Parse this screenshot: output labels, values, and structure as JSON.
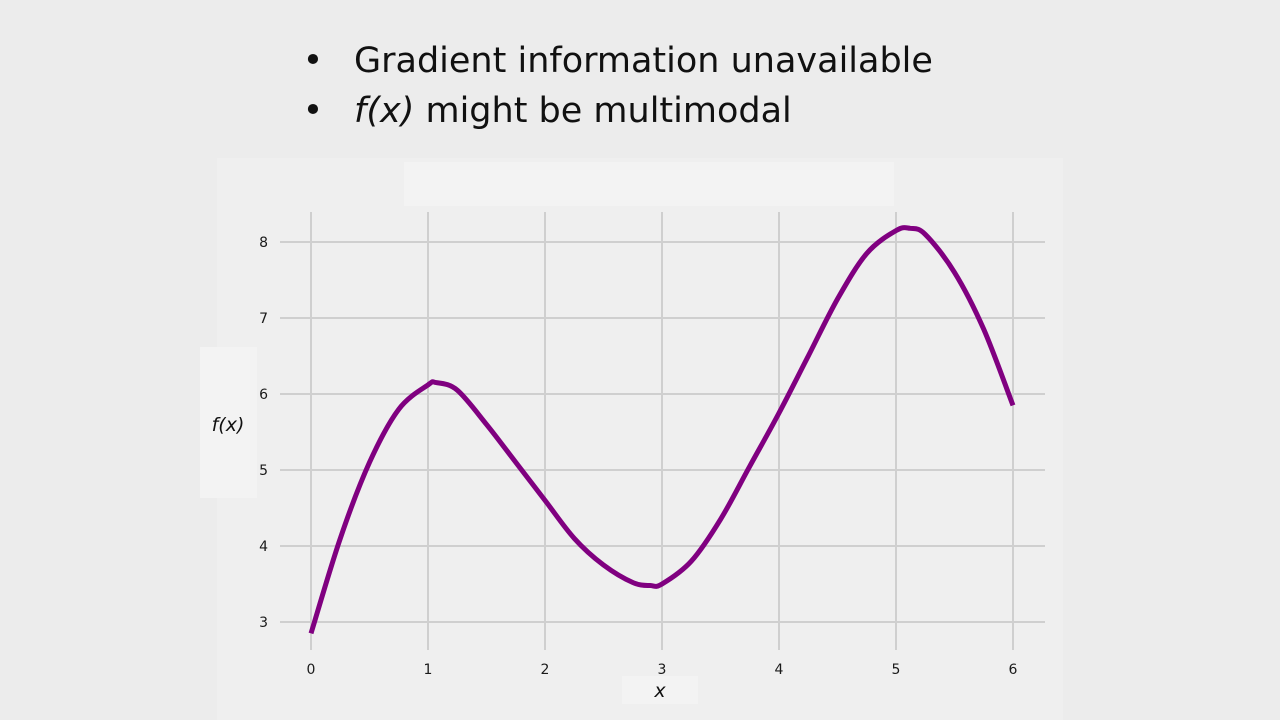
{
  "bullets": [
    {
      "italic": "",
      "text": "Gradient information unavailable"
    },
    {
      "italic": "f(x)",
      "text": " might be multimodal"
    }
  ],
  "bullet_glyph": "•",
  "chart_data": {
    "type": "line",
    "title": "",
    "xlabel": "x",
    "ylabel": "f(x)",
    "xlim": [
      0,
      6
    ],
    "ylim": [
      2.8,
      8.4
    ],
    "xticks": [
      0,
      1,
      2,
      3,
      4,
      5,
      6
    ],
    "yticks": [
      3,
      4,
      5,
      6,
      7,
      8
    ],
    "grid": true,
    "legend": "none",
    "series": [
      {
        "color": "#800080",
        "x": [
          0,
          0.25,
          0.5,
          0.75,
          1.0,
          1.07,
          1.25,
          1.5,
          1.75,
          2.0,
          2.25,
          2.5,
          2.75,
          2.9,
          3.0,
          3.25,
          3.5,
          3.75,
          4.0,
          4.25,
          4.5,
          4.75,
          5.0,
          5.12,
          5.25,
          5.5,
          5.75,
          6.0
        ],
        "y": [
          2.85,
          4.1,
          5.1,
          5.8,
          6.12,
          6.15,
          6.05,
          5.6,
          5.1,
          4.6,
          4.1,
          3.75,
          3.52,
          3.48,
          3.5,
          3.8,
          4.35,
          5.05,
          5.75,
          6.5,
          7.25,
          7.85,
          8.15,
          8.18,
          8.1,
          7.6,
          6.85,
          5.85
        ]
      }
    ]
  }
}
